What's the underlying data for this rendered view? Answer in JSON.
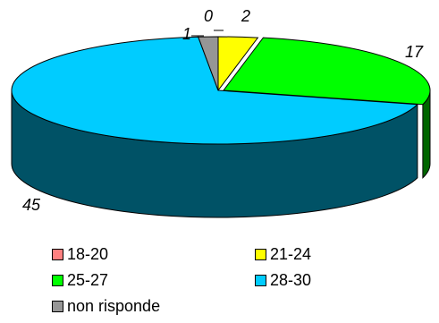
{
  "chart_data": {
    "type": "pie",
    "style": "3d-exploded",
    "slices": [
      {
        "label": "18-20",
        "value": 0,
        "color": "#ff8080",
        "data_label": "0"
      },
      {
        "label": "21-24",
        "value": 2,
        "color": "#ffff00",
        "data_label": "2"
      },
      {
        "label": "25-27",
        "value": 17,
        "color": "#00ff00",
        "data_label": "17"
      },
      {
        "label": "28-30",
        "value": 45,
        "color": "#00ccff",
        "data_label": "45"
      },
      {
        "label": "non risponde",
        "value": 1,
        "color": "#969696",
        "data_label": "1"
      }
    ],
    "legend": [
      "18-20",
      "21-24",
      "25-27",
      "28-30",
      "non risponde"
    ],
    "legend_placement": "bottom"
  }
}
